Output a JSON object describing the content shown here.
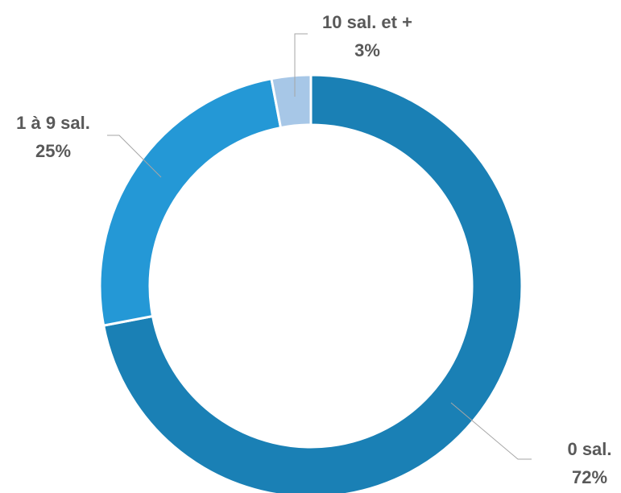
{
  "chart_data": {
    "type": "pie",
    "style": "doughnut",
    "legend": "none",
    "categories": [
      "0 sal.",
      "1 à 9 sal.",
      "10 sal. et +"
    ],
    "values": [
      72,
      25,
      3
    ],
    "value_labels": [
      "72%",
      "25%",
      "3%"
    ],
    "colors": [
      "#1a80b5",
      "#2498d6",
      "#a7c7e7"
    ],
    "start_angle_deg": 0,
    "direction": "clockwise"
  }
}
